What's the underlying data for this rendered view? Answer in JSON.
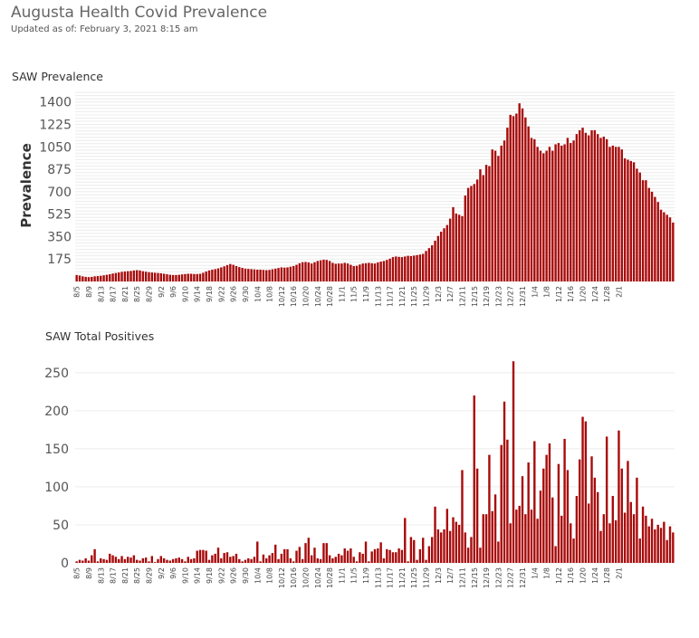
{
  "header": {
    "title": "Augusta Health Covid Prevalence",
    "updated_label": "Updated as of:",
    "updated_value": "February 3, 2021 8:15 am"
  },
  "colors": {
    "bar": "#A80A0A",
    "grid": "#ececec"
  },
  "chart_data": [
    {
      "type": "bar",
      "title": "SAW Prevalence",
      "xlabel": "",
      "ylabel": "Prevalence",
      "ylim": [
        0,
        1490
      ],
      "yticks": [
        175,
        350,
        525,
        700,
        875,
        1050,
        1225,
        1400
      ],
      "grid": true,
      "start_date": "8/5",
      "xtick_labels": [
        "8/5",
        "8/9",
        "8/13",
        "8/17",
        "8/21",
        "8/25",
        "8/29",
        "9/2",
        "9/6",
        "9/10",
        "9/14",
        "9/18",
        "9/22",
        "9/26",
        "9/30",
        "10/4",
        "10/8",
        "10/12",
        "10/16",
        "10/20",
        "10/24",
        "10/28",
        "11/1",
        "11/5",
        "11/9",
        "11/13",
        "11/17",
        "11/21",
        "11/25",
        "11/29",
        "12/3",
        "12/7",
        "12/11",
        "12/15",
        "12/19",
        "12/23",
        "12/27",
        "12/31",
        "1/4",
        "1/8",
        "1/12",
        "1/16",
        "1/20",
        "1/24",
        "1/28",
        "2/1"
      ],
      "values": [
        50,
        46,
        40,
        36,
        34,
        36,
        40,
        42,
        44,
        48,
        52,
        56,
        62,
        66,
        70,
        75,
        78,
        80,
        82,
        86,
        88,
        86,
        80,
        76,
        72,
        70,
        68,
        66,
        64,
        60,
        56,
        52,
        50,
        50,
        52,
        55,
        58,
        60,
        60,
        58,
        58,
        60,
        68,
        78,
        86,
        92,
        96,
        102,
        110,
        118,
        128,
        136,
        130,
        120,
        112,
        106,
        100,
        98,
        96,
        94,
        92,
        92,
        90,
        88,
        90,
        95,
        100,
        105,
        110,
        108,
        110,
        115,
        120,
        130,
        142,
        150,
        152,
        148,
        140,
        150,
        160,
        165,
        170,
        168,
        160,
        145,
        138,
        140,
        140,
        145,
        140,
        130,
        120,
        122,
        132,
        140,
        142,
        145,
        142,
        140,
        148,
        155,
        160,
        168,
        178,
        190,
        195,
        192,
        190,
        195,
        200,
        198,
        202,
        206,
        210,
        215,
        238,
        260,
        282,
        318,
        355,
        388,
        415,
        440,
        490,
        580,
        530,
        520,
        510,
        670,
        730,
        745,
        760,
        795,
        875,
        830,
        910,
        900,
        1030,
        1020,
        980,
        1060,
        1100,
        1200,
        1300,
        1290,
        1310,
        1390,
        1350,
        1280,
        1210,
        1120,
        1110,
        1050,
        1020,
        1000,
        1020,
        1050,
        1020,
        1070,
        1080,
        1060,
        1070,
        1120,
        1080,
        1100,
        1150,
        1180,
        1200,
        1160,
        1140,
        1180,
        1180,
        1150,
        1120,
        1130,
        1110,
        1050,
        1060,
        1050,
        1050,
        1030,
        960,
        950,
        940,
        930,
        880,
        850,
        790,
        790,
        730,
        700,
        660,
        620,
        560,
        540,
        520,
        500,
        460
      ]
    },
    {
      "type": "bar",
      "title": "SAW Total Positives",
      "xlabel": "",
      "ylabel": "",
      "ylim": [
        0,
        270
      ],
      "yticks": [
        0,
        50,
        100,
        150,
        200,
        250
      ],
      "grid": true,
      "start_date": "8/5",
      "xtick_labels": [
        "8/5",
        "8/9",
        "8/13",
        "8/17",
        "8/21",
        "8/25",
        "8/29",
        "9/2",
        "9/6",
        "9/10",
        "9/14",
        "9/18",
        "9/22",
        "9/26",
        "9/30",
        "10/4",
        "10/8",
        "10/12",
        "10/16",
        "10/20",
        "10/24",
        "10/28",
        "11/1",
        "11/5",
        "11/9",
        "11/13",
        "11/17",
        "11/21",
        "11/25",
        "11/29",
        "12/3",
        "12/7",
        "12/11",
        "12/15",
        "12/19",
        "12/23",
        "12/27",
        "12/31",
        "1/4",
        "1/8",
        "1/12",
        "1/16",
        "1/20",
        "1/24",
        "1/28",
        "2/1"
      ],
      "values": [
        2,
        4,
        3,
        6,
        3,
        10,
        18,
        2,
        6,
        5,
        4,
        12,
        10,
        8,
        5,
        9,
        5,
        8,
        7,
        10,
        4,
        3,
        6,
        7,
        2,
        9,
        1,
        5,
        9,
        6,
        4,
        3,
        5,
        6,
        7,
        5,
        2,
        8,
        5,
        6,
        16,
        17,
        17,
        16,
        4,
        10,
        12,
        20,
        6,
        13,
        14,
        8,
        9,
        12,
        5,
        2,
        4,
        6,
        5,
        8,
        28,
        2,
        11,
        6,
        10,
        13,
        24,
        5,
        12,
        18,
        18,
        6,
        2,
        16,
        21,
        5,
        26,
        33,
        10,
        20,
        6,
        5,
        26,
        26,
        10,
        6,
        8,
        12,
        10,
        19,
        16,
        19,
        8,
        2,
        14,
        12,
        28,
        2,
        15,
        18,
        19,
        27,
        6,
        18,
        17,
        14,
        14,
        19,
        17,
        59,
        2,
        34,
        30,
        4,
        18,
        33,
        4,
        22,
        34,
        74,
        44,
        40,
        44,
        71,
        42,
        60,
        54,
        50,
        122,
        40,
        20,
        34,
        220,
        124,
        20,
        64,
        64,
        142,
        68,
        90,
        28,
        155,
        212,
        162,
        52,
        265,
        70,
        75,
        114,
        64,
        132,
        70,
        160,
        58,
        95,
        124,
        142,
        157,
        86,
        22,
        130,
        62,
        163,
        122,
        52,
        32,
        88,
        136,
        192,
        186,
        78,
        140,
        112,
        93,
        42,
        64,
        166,
        52,
        88,
        56,
        174,
        124,
        66,
        134,
        80,
        64,
        112,
        32,
        74,
        62,
        48,
        58,
        44,
        50,
        46,
        54,
        30,
        48,
        40
      ]
    }
  ]
}
